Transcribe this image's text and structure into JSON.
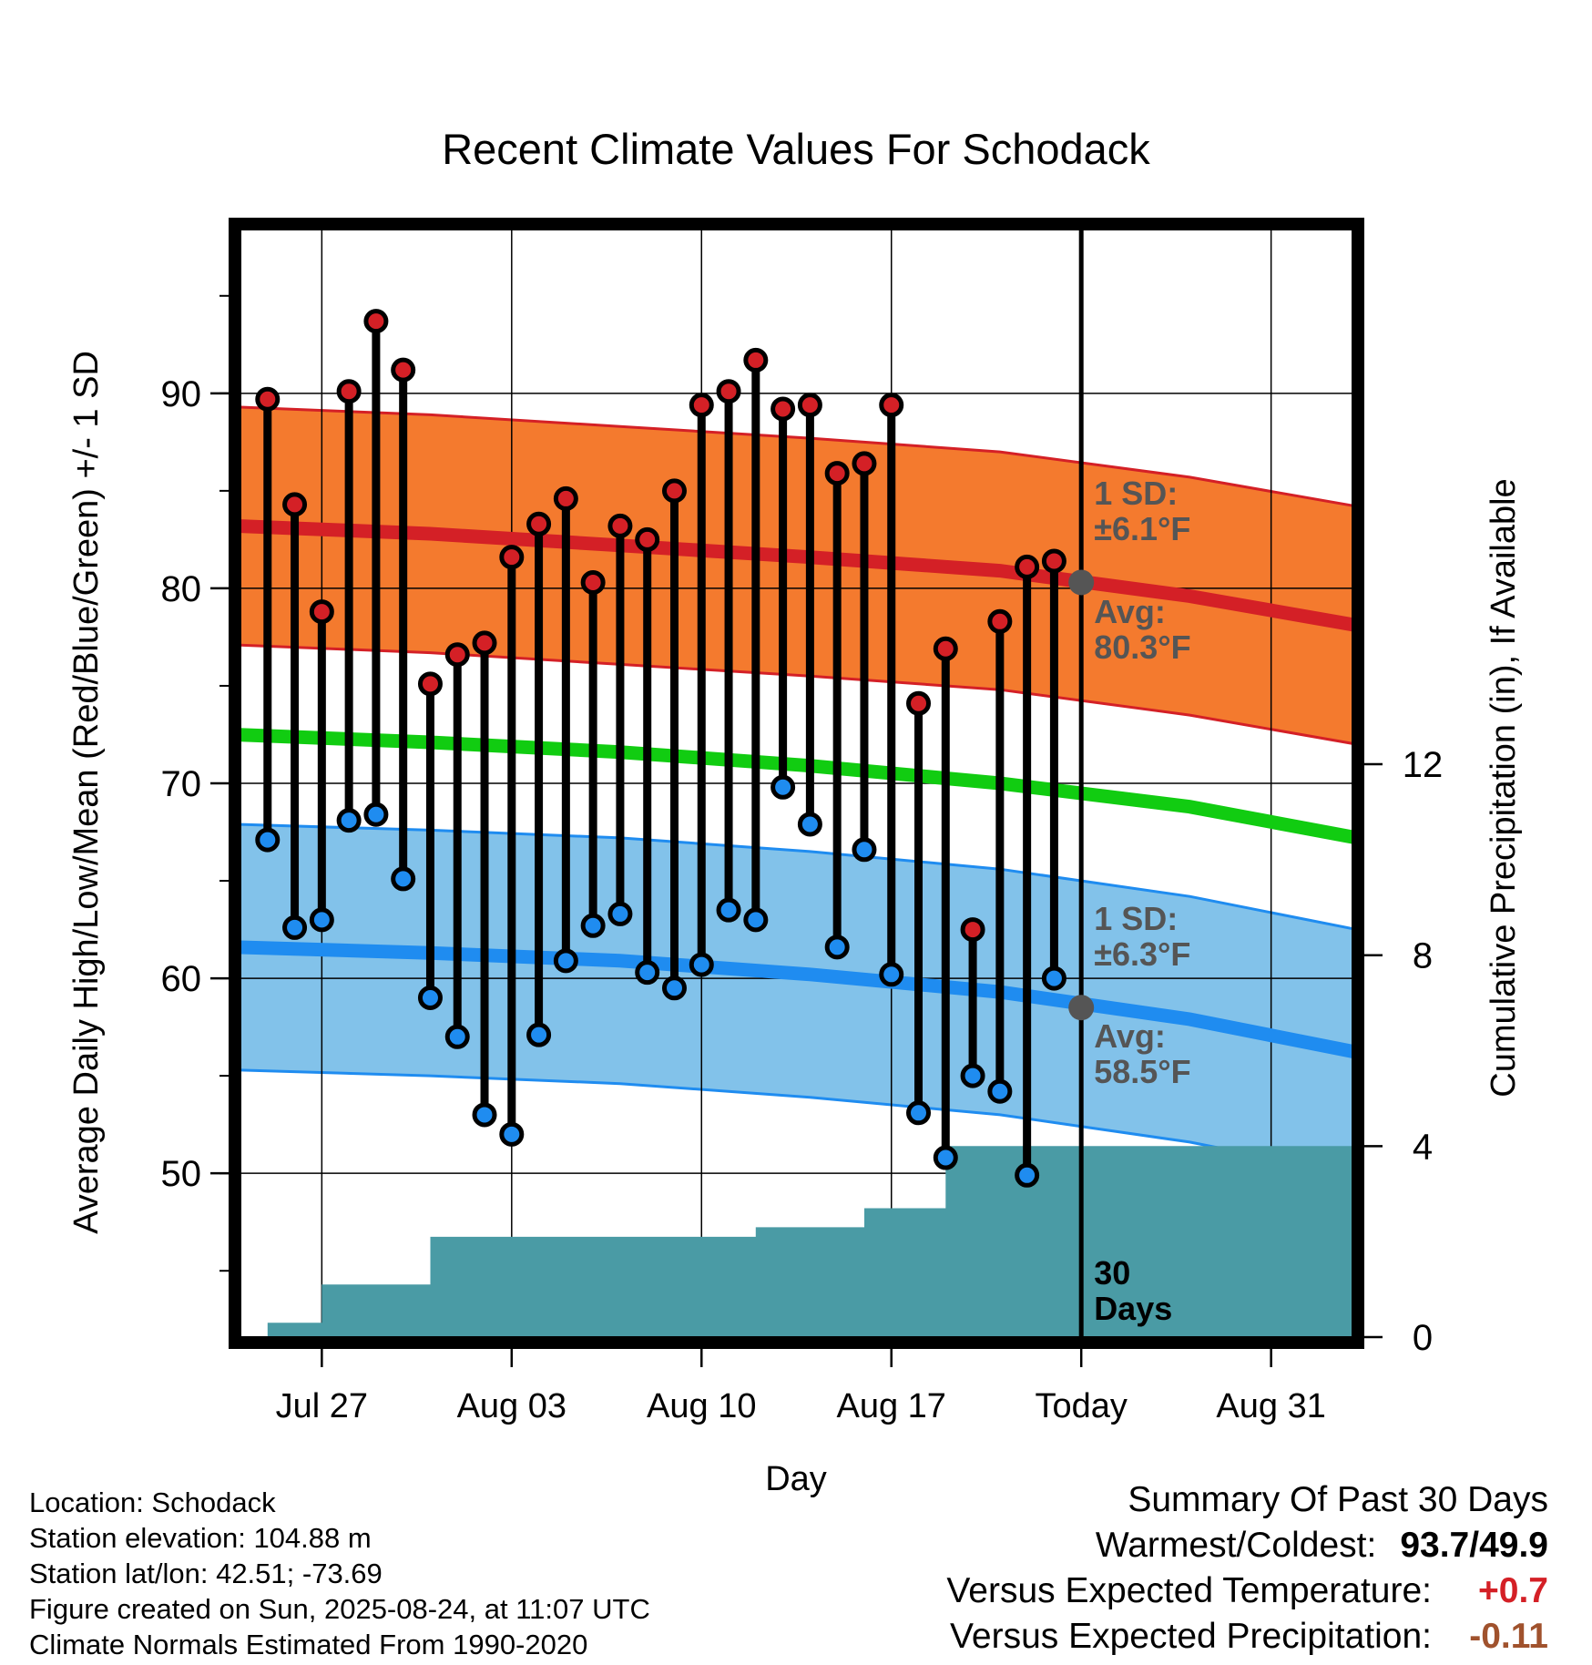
{
  "colors": {
    "high_band": "#f47a2e",
    "high_line": "#d42026",
    "low_band": "#82c2ea",
    "low_line": "#1f8cf0",
    "mean_line": "#11cc11",
    "precip": "#4a9ba5",
    "high_dot": "#d42026",
    "low_dot": "#1f8cf0",
    "marker": "#555555",
    "annotation": "#555555",
    "positive": "#d42026",
    "precip_diff": "#a0522d"
  },
  "chart_data": {
    "type": "line",
    "title": "Recent Climate Values For Schodack",
    "xlabel": "Day",
    "ylabel": "Average Daily High/Low/Mean (Red/Blue/Green) +/- 1 SD",
    "y2label": "Cumulative Precipitation (in), If Available",
    "ylim": [
      41.6,
      98.4
    ],
    "y2lim": [
      0,
      23.2
    ],
    "yticks": [
      "50",
      "60",
      "70",
      "80",
      "90"
    ],
    "y2ticks": [
      "0",
      "4",
      "8",
      "12"
    ],
    "xticks": [
      "Jul 27",
      "Aug 03",
      "Aug 10",
      "Aug 17",
      "Today",
      "Aug 31"
    ],
    "x_range": [
      "2025-07-24",
      "2025-09-03"
    ],
    "x_tick_dates": [
      "2025-07-27",
      "2025-08-03",
      "2025-08-10",
      "2025-08-17",
      "2025-08-24",
      "2025-08-31"
    ],
    "today": "2025-08-24",
    "normal_x": [
      "2025-07-24",
      "2025-07-31",
      "2025-08-07",
      "2025-08-14",
      "2025-08-21",
      "2025-08-28",
      "2025-09-03"
    ],
    "normal_high": [
      83.2,
      82.8,
      82.2,
      81.6,
      80.9,
      79.6,
      78.1
    ],
    "normal_high_sd": 6.1,
    "normal_low": [
      61.6,
      61.3,
      60.9,
      60.2,
      59.3,
      57.9,
      56.2
    ],
    "normal_low_sd": 6.3,
    "normal_mean": [
      72.5,
      72.1,
      71.6,
      70.9,
      70.0,
      68.8,
      67.2
    ],
    "series": [
      {
        "name": "High",
        "dates": [
          "2025-07-25",
          "2025-07-26",
          "2025-07-27",
          "2025-07-28",
          "2025-07-29",
          "2025-07-30",
          "2025-07-31",
          "2025-08-01",
          "2025-08-02",
          "2025-08-03",
          "2025-08-04",
          "2025-08-05",
          "2025-08-06",
          "2025-08-07",
          "2025-08-08",
          "2025-08-09",
          "2025-08-10",
          "2025-08-11",
          "2025-08-12",
          "2025-08-13",
          "2025-08-14",
          "2025-08-15",
          "2025-08-16",
          "2025-08-17",
          "2025-08-18",
          "2025-08-19",
          "2025-08-20",
          "2025-08-21",
          "2025-08-22",
          "2025-08-23"
        ],
        "values": [
          89.7,
          84.3,
          78.8,
          90.1,
          93.7,
          91.2,
          75.1,
          76.6,
          77.2,
          81.6,
          83.3,
          84.6,
          80.3,
          83.2,
          82.5,
          85.0,
          89.4,
          90.1,
          91.7,
          89.2,
          89.4,
          85.9,
          86.4,
          89.4,
          74.1,
          76.9,
          62.5,
          78.3,
          81.1,
          81.4
        ]
      },
      {
        "name": "Low",
        "dates": [
          "2025-07-25",
          "2025-07-26",
          "2025-07-27",
          "2025-07-28",
          "2025-07-29",
          "2025-07-30",
          "2025-07-31",
          "2025-08-01",
          "2025-08-02",
          "2025-08-03",
          "2025-08-04",
          "2025-08-05",
          "2025-08-06",
          "2025-08-07",
          "2025-08-08",
          "2025-08-09",
          "2025-08-10",
          "2025-08-11",
          "2025-08-12",
          "2025-08-13",
          "2025-08-14",
          "2025-08-15",
          "2025-08-16",
          "2025-08-17",
          "2025-08-18",
          "2025-08-19",
          "2025-08-20",
          "2025-08-21",
          "2025-08-22",
          "2025-08-23"
        ],
        "values": [
          67.1,
          62.6,
          63.0,
          68.1,
          68.4,
          65.1,
          59.0,
          57.0,
          53.0,
          52.0,
          57.1,
          60.9,
          62.7,
          63.3,
          60.3,
          59.5,
          60.7,
          63.5,
          63.0,
          69.8,
          67.9,
          61.6,
          66.6,
          60.2,
          53.1,
          50.8,
          55.0,
          54.2,
          49.9,
          60.0
        ]
      },
      {
        "name": "Cumulative Precipitation",
        "dates": [
          "2025-07-24",
          "2025-07-25",
          "2025-07-26",
          "2025-07-27",
          "2025-07-28",
          "2025-07-29",
          "2025-07-30",
          "2025-07-31",
          "2025-08-01",
          "2025-08-02",
          "2025-08-03",
          "2025-08-04",
          "2025-08-05",
          "2025-08-06",
          "2025-08-07",
          "2025-08-08",
          "2025-08-09",
          "2025-08-10",
          "2025-08-11",
          "2025-08-12",
          "2025-08-13",
          "2025-08-14",
          "2025-08-15",
          "2025-08-16",
          "2025-08-17",
          "2025-08-18",
          "2025-08-19",
          "2025-08-20",
          "2025-08-21",
          "2025-08-22",
          "2025-08-23",
          "2025-08-24",
          "2025-09-03"
        ],
        "values": [
          0,
          0.3,
          0.3,
          1.1,
          1.1,
          1.1,
          1.1,
          2.1,
          2.1,
          2.1,
          2.1,
          2.1,
          2.1,
          2.1,
          2.1,
          2.1,
          2.1,
          2.1,
          2.1,
          2.3,
          2.3,
          2.3,
          2.3,
          2.7,
          2.7,
          2.7,
          4.0,
          4.0,
          4.0,
          4.0,
          4.0,
          4.0,
          4.0
        ]
      }
    ],
    "annotations": {
      "high_sd": [
        "1 SD:",
        "±6.1°F"
      ],
      "high_avg": [
        "Avg:",
        "80.3°F"
      ],
      "low_sd": [
        "1 SD:",
        "±6.3°F"
      ],
      "low_avg": [
        "Avg:",
        "58.5°F"
      ],
      "window": [
        "30",
        "Days"
      ]
    }
  },
  "footer": {
    "location": "Location: Schodack",
    "elevation": "Station elevation: 104.88 m",
    "latlon": "Station lat/lon: 42.51; -73.69",
    "created": "Figure created on Sun, 2025-08-24, at 11:07 UTC",
    "normals": "Climate Normals Estimated From 1990-2020"
  },
  "summary": {
    "heading": "Summary Of Past 30 Days",
    "warm_cold_label": "Warmest/Coldest:",
    "warmest": "93.7",
    "separator": "/",
    "coldest": "49.9",
    "temp_label": "Versus Expected Temperature:",
    "temp_value": "+0.7",
    "precip_label": "Versus Expected Precipitation:",
    "precip_value": "-0.11"
  }
}
